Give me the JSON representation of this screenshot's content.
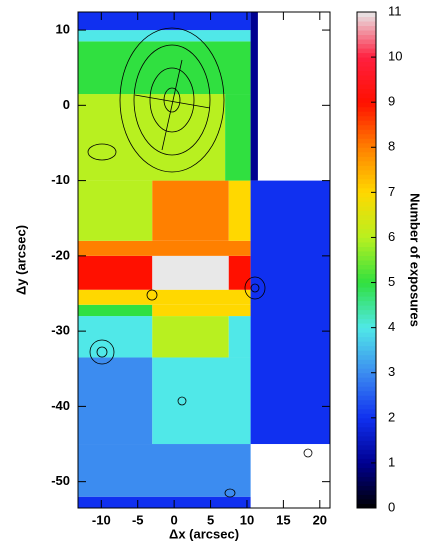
{
  "chart_data": {
    "type": "heatmap",
    "xlabel": "Δx (arcsec)",
    "ylabel": "Δy (arcsec)",
    "xlim": [
      -13.2,
      21.4
    ],
    "ylim": [
      -53.5,
      12.4
    ],
    "xticks": [
      -10,
      -5,
      0,
      5,
      10,
      15,
      20
    ],
    "yticks": [
      10,
      0,
      -10,
      -20,
      -30,
      -40,
      -50
    ],
    "cells": [
      {
        "x0": -13.2,
        "x1": 10.5,
        "y0": -53.5,
        "y1": -52,
        "value": 2
      },
      {
        "x0": -13.2,
        "x1": 10.5,
        "y0": -52,
        "y1": -45,
        "value": 3
      },
      {
        "x0": -13.2,
        "x1": -3,
        "y0": -45,
        "y1": -33.5,
        "value": 3
      },
      {
        "x0": -3,
        "x1": 10.5,
        "y0": -45,
        "y1": -33.5,
        "value": 4
      },
      {
        "x0": -13.2,
        "x1": -3,
        "y0": -33.5,
        "y1": -28,
        "value": 4
      },
      {
        "x0": -3,
        "x1": 7.5,
        "y0": -33.5,
        "y1": -28,
        "value": 6
      },
      {
        "x0": 7.5,
        "x1": 10.5,
        "y0": -33.5,
        "y1": -28,
        "value": 4
      },
      {
        "x0": -13.2,
        "x1": -3,
        "y0": -28,
        "y1": -26.5,
        "value": 5
      },
      {
        "x0": -3,
        "x1": 10.5,
        "y0": -28,
        "y1": -26.5,
        "value": 7
      },
      {
        "x0": -13.2,
        "x1": 10.5,
        "y0": -26.5,
        "y1": -24.5,
        "value": 7
      },
      {
        "x0": -13.2,
        "x1": -3,
        "y0": -24.5,
        "y1": -20,
        "value": 9
      },
      {
        "x0": -3,
        "x1": 7.5,
        "y0": -24.5,
        "y1": -20,
        "value": 11
      },
      {
        "x0": 7.5,
        "x1": 10.5,
        "y0": -24.5,
        "y1": -20,
        "value": 9
      },
      {
        "x0": -13.2,
        "x1": 10.5,
        "y0": -20,
        "y1": -18,
        "value": 8
      },
      {
        "x0": -13.2,
        "x1": -3,
        "y0": -18,
        "y1": -10,
        "value": 6
      },
      {
        "x0": -3,
        "x1": 7.5,
        "y0": -18,
        "y1": -10,
        "value": 8
      },
      {
        "x0": 7.5,
        "x1": 10.5,
        "y0": -18,
        "y1": -10,
        "value": 7
      },
      {
        "x0": -13.2,
        "x1": 7,
        "y0": -10,
        "y1": 1.5,
        "value": 6
      },
      {
        "x0": 7,
        "x1": 10.5,
        "y0": -10,
        "y1": 1.5,
        "value": 5
      },
      {
        "x0": -13.2,
        "x1": 10.5,
        "y0": 1.5,
        "y1": 8.5,
        "value": 5
      },
      {
        "x0": -13.2,
        "x1": 10.5,
        "y0": 8.5,
        "y1": 10,
        "value": 4
      },
      {
        "x0": -13.2,
        "x1": 10.5,
        "y0": 10,
        "y1": 12.4,
        "value": 2
      },
      {
        "x0": 10.5,
        "x1": 11.5,
        "y0": -10,
        "y1": 12.4,
        "value": 1
      },
      {
        "x0": 10.5,
        "x1": 21.4,
        "y0": -45,
        "y1": -10,
        "value": 2
      }
    ],
    "colorbar": {
      "label": "Number of exposures",
      "ylim": [
        0,
        11
      ],
      "yticks": [
        0,
        1,
        2,
        3,
        4,
        5,
        6,
        7,
        8,
        9,
        10,
        11
      ],
      "colors": [
        "#000000",
        "#000090",
        "#1030f0",
        "#3c8cf0",
        "#50e8e8",
        "#30e040",
        "#b8f020",
        "#ffd800",
        "#ff8000",
        "#ff1000",
        "#ff2040",
        "#e8e8e8"
      ]
    }
  }
}
